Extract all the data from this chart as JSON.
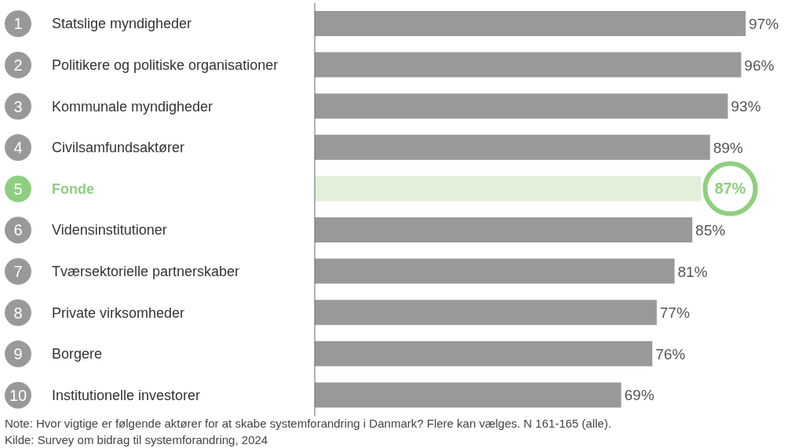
{
  "chart_data": {
    "type": "bar",
    "orientation": "horizontal",
    "categories": [
      "Statslige myndigheder",
      "Politikere og politiske organisationer",
      "Kommunale myndigheder",
      "Civilsamfundsaktører",
      "Fonde",
      "Vidensinstitutioner",
      "Tværsektorielle partnerskaber",
      "Private virksomheder",
      "Borgere",
      "Institutionelle investorer"
    ],
    "values": [
      97,
      96,
      93,
      89,
      87,
      85,
      81,
      77,
      76,
      69
    ],
    "value_labels": [
      "97%",
      "96%",
      "93%",
      "89%",
      "87%",
      "85%",
      "81%",
      "77%",
      "76%",
      "69%"
    ],
    "colors": [
      "#999999",
      "#999999",
      "#999999",
      "#999999",
      "#e2f0d9",
      "#999999",
      "#999999",
      "#999999",
      "#999999",
      "#999999"
    ],
    "annotations": [
      "1",
      "2",
      "3",
      "4",
      "5",
      "6",
      "7",
      "8",
      "9",
      "10",
      "Note: Hvor vigtige er følgende aktører for at skabe systemforandring i Danmark? Flere kan vælges. N 161-165 (alle).",
      "Kilde: Survey om bidrag til systemforandring, 2024"
    ]
  }
}
